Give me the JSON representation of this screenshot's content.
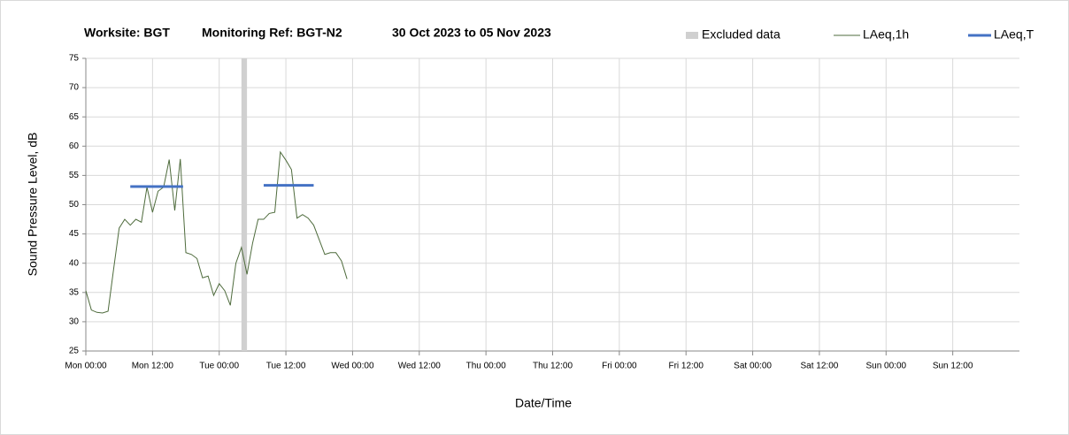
{
  "chart_data": {
    "type": "line",
    "title": [
      "Worksite: BGT",
      "Monitoring Ref: BGT-N2",
      "30 Oct 2023 to 05 Nov 2023"
    ],
    "x_label": "Date/Time",
    "y_label": "Sound Pressure Level, dB",
    "xlim": [
      0,
      168
    ],
    "xticks": [
      {
        "value": 0,
        "label": "Mon 00:00"
      },
      {
        "value": 12,
        "label": "Mon 12:00"
      },
      {
        "value": 24,
        "label": "Tue 00:00"
      },
      {
        "value": 36,
        "label": "Tue 12:00"
      },
      {
        "value": 48,
        "label": "Wed 00:00"
      },
      {
        "value": 60,
        "label": "Wed 12:00"
      },
      {
        "value": 72,
        "label": "Thu 00:00"
      },
      {
        "value": 84,
        "label": "Thu 12:00"
      },
      {
        "value": 96,
        "label": "Fri 00:00"
      },
      {
        "value": 108,
        "label": "Fri 12:00"
      },
      {
        "value": 120,
        "label": "Sat 00:00"
      },
      {
        "value": 132,
        "label": "Sat 12:00"
      },
      {
        "value": 144,
        "label": "Sun 00:00"
      },
      {
        "value": 156,
        "label": "Sun 12:00"
      }
    ],
    "ylim": [
      25,
      75
    ],
    "yticks": [
      25,
      30,
      35,
      40,
      45,
      50,
      55,
      60,
      65,
      70,
      75
    ],
    "grid": true,
    "legend": "top-right",
    "excluded": {
      "name": "Excluded data",
      "color": "#d0d0d0",
      "x": [
        28,
        29
      ]
    },
    "series": [
      {
        "name": "LAeq,1h",
        "color": "#4e6b3c",
        "width": 1,
        "x": [
          0,
          1,
          2,
          3,
          4,
          5,
          6,
          7,
          8,
          9,
          10,
          11,
          12,
          13,
          14,
          15,
          16,
          17,
          18,
          19,
          20,
          21,
          22,
          23,
          24,
          25,
          26,
          27,
          28,
          29,
          30,
          31,
          32,
          33,
          34,
          35,
          36,
          37,
          38,
          39,
          40,
          41,
          42,
          43,
          44,
          45,
          46,
          47
        ],
        "values": [
          35.3,
          32,
          31.6,
          31.5,
          31.8,
          39,
          46,
          47.5,
          46.5,
          47.5,
          47,
          53,
          48.7,
          52.3,
          53,
          57.7,
          49,
          57.8,
          41.8,
          41.5,
          40.8,
          37.5,
          37.8,
          34.5,
          36.5,
          35.3,
          32.8,
          40,
          42.7,
          38.1,
          43.4,
          47.5,
          47.5,
          48.5,
          48.7,
          59,
          57.6,
          56,
          47.7,
          48.3,
          47.7,
          46.5,
          44,
          41.5,
          41.8,
          41.8,
          40.4,
          37.3
        ]
      },
      {
        "name": "LAeq,T",
        "color": "#4472c4",
        "width": 3,
        "x": [
          8,
          17.5,
          null,
          32,
          41
        ],
        "values": [
          53.1,
          53.1,
          null,
          53.3,
          53.3
        ]
      }
    ]
  }
}
